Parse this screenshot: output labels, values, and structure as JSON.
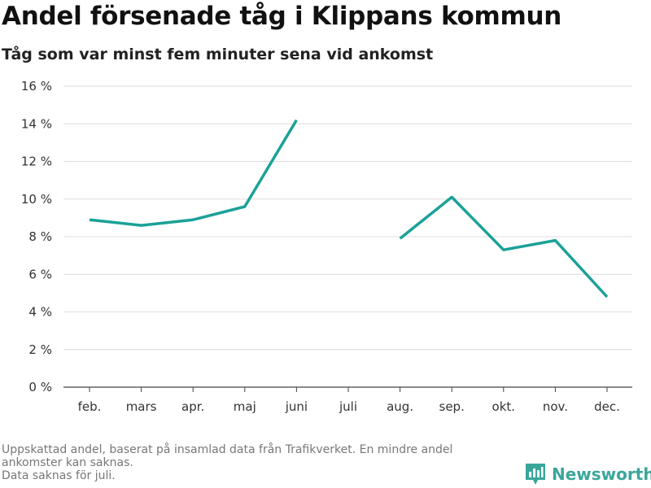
{
  "header": {
    "title": "Andel försenade tåg i Klippans kommun",
    "subtitle": "Tåg som var minst fem minuter sena vid ankomst"
  },
  "footnote": {
    "line1": "Uppskattad andel, baserat på insamlad data från Trafikverket. En mindre andel",
    "line2": "ankomster kan saknas.",
    "line3": "Data saknas för juli."
  },
  "brand": {
    "name": "Newsworthy",
    "icon": "newsworthy-logo-icon",
    "color": "#3aa69a"
  },
  "colors": {
    "line": "#1aa198",
    "grid": "#dedede"
  },
  "chart_data": {
    "type": "line",
    "title": "Andel försenade tåg i Klippans kommun",
    "subtitle": "Tåg som var minst fem minuter sena vid ankomst",
    "xlabel": "",
    "ylabel": "",
    "categories": [
      "feb.",
      "mars",
      "apr.",
      "maj",
      "juni",
      "juli",
      "aug.",
      "sep.",
      "okt.",
      "nov.",
      "dec."
    ],
    "series": [
      {
        "values": [
          8.9,
          8.6,
          8.9,
          9.6,
          14.2,
          null,
          7.9,
          10.1,
          7.3,
          7.8,
          4.8
        ]
      }
    ],
    "yticks": [
      0,
      2,
      4,
      6,
      8,
      10,
      12,
      14,
      16
    ],
    "ytick_labels": [
      "0 %",
      "2 %",
      "4 %",
      "6 %",
      "8 %",
      "10 %",
      "12 %",
      "14 %",
      "16 %"
    ],
    "ylim": [
      0,
      16
    ],
    "grid": true,
    "legend": "none"
  }
}
